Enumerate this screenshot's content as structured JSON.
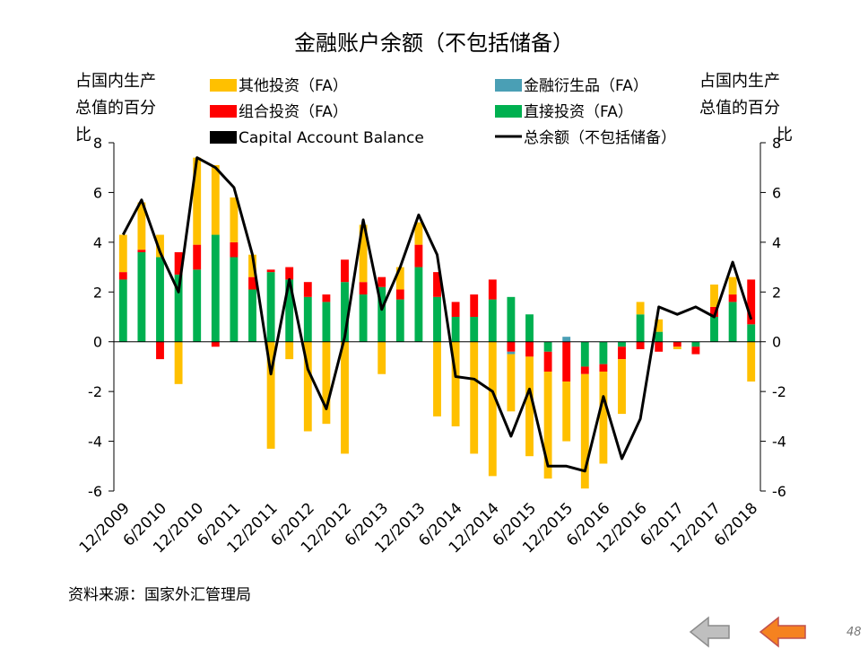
{
  "chart_data": {
    "type": "bar",
    "title": "金融账户余额（不包括储备）",
    "ylabel_left": [
      "占国内生产",
      "总值的百分",
      "比"
    ],
    "ylabel_right": [
      "占国内生产",
      "总值的百分",
      "比"
    ],
    "ylim": [
      -6,
      8
    ],
    "yticks": [
      -6,
      -4,
      -2,
      0,
      2,
      4,
      6,
      8
    ],
    "x_tick_labels": [
      "12/2009",
      "6/2010",
      "12/2010",
      "6/2011",
      "12/2011",
      "6/2012",
      "12/2012",
      "6/2013",
      "12/2013",
      "6/2014",
      "12/2014",
      "6/2015",
      "12/2015",
      "6/2016",
      "12/2016",
      "6/2017",
      "12/2017",
      "6/2018"
    ],
    "categories": [
      "12/2009",
      "3/2010",
      "6/2010",
      "9/2010",
      "12/2010",
      "3/2011",
      "6/2011",
      "9/2011",
      "12/2011",
      "3/2012",
      "6/2012",
      "9/2012",
      "12/2012",
      "3/2013",
      "6/2013",
      "9/2013",
      "12/2013",
      "3/2014",
      "6/2014",
      "9/2014",
      "12/2014",
      "3/2015",
      "6/2015",
      "9/2015",
      "12/2015",
      "3/2016",
      "6/2016",
      "9/2016",
      "12/2016",
      "3/2017",
      "6/2017",
      "9/2017",
      "12/2017",
      "3/2018",
      "6/2018"
    ],
    "stack_order": [
      "直接投资（FA）",
      "组合投资（FA）",
      "金融衍生品（FA）",
      "其他投资（FA）"
    ],
    "series": [
      {
        "name": "其他投资（FA）",
        "color": "#ffc000",
        "kind": "bar",
        "values": [
          1.5,
          1.9,
          0.9,
          -1.7,
          3.5,
          2.8,
          1.8,
          0.9,
          -4.3,
          -0.7,
          -3.6,
          -3.3,
          -4.5,
          2.3,
          -1.3,
          0.9,
          0.9,
          -3.0,
          -3.4,
          -4.5,
          -5.4,
          -2.3,
          -4.0,
          -4.3,
          -2.4,
          -4.6,
          -3.7,
          -2.2,
          0.5,
          0.5,
          -0.1,
          0.0,
          0.9,
          0.7,
          -1.6
        ]
      },
      {
        "name": "金融衍生品（FA）",
        "color": "#4a9fb5",
        "kind": "bar",
        "values": [
          0,
          0,
          0,
          0,
          0,
          0,
          0,
          0,
          0,
          0,
          0,
          0,
          0,
          0,
          0,
          0,
          0,
          0,
          0,
          0,
          0,
          -0.1,
          0,
          0,
          0.2,
          0,
          0,
          0,
          0,
          0,
          0,
          0,
          0,
          0,
          0
        ]
      },
      {
        "name": "组合投资（FA）",
        "color": "#ff0000",
        "kind": "bar",
        "values": [
          0.3,
          0.1,
          -0.7,
          0.9,
          1.0,
          -0.2,
          0.6,
          0.5,
          0.1,
          0.5,
          0.6,
          0.3,
          0.9,
          0.5,
          0.4,
          0.4,
          0.9,
          1.0,
          0.6,
          0.9,
          0.8,
          -0.4,
          -0.6,
          -0.8,
          -1.6,
          -0.3,
          -0.3,
          -0.5,
          -0.3,
          -0.4,
          -0.2,
          -0.3,
          0.4,
          0.3,
          1.8
        ]
      },
      {
        "name": "直接投资（FA）",
        "color": "#00b050",
        "kind": "bar",
        "values": [
          2.5,
          3.6,
          3.4,
          2.7,
          2.9,
          4.3,
          3.4,
          2.1,
          2.8,
          2.5,
          1.8,
          1.6,
          2.4,
          1.9,
          2.2,
          1.7,
          3.0,
          1.8,
          1.0,
          1.0,
          1.7,
          1.8,
          1.1,
          -0.4,
          0.0,
          -1.0,
          -0.9,
          -0.2,
          1.1,
          0.4,
          0.0,
          -0.2,
          1.0,
          1.6,
          0.7
        ]
      },
      {
        "name": "Capital Account Balance",
        "color": "#000000",
        "kind": "bar",
        "values": [
          0,
          0,
          0,
          0,
          0,
          0,
          0,
          0,
          0,
          0,
          0,
          0,
          0,
          0,
          0,
          0,
          0,
          0,
          0,
          0,
          0,
          0,
          0,
          0,
          0,
          0,
          0,
          0,
          0,
          0,
          0,
          0,
          0,
          0,
          0
        ]
      },
      {
        "name": "总余额（不包括储备）",
        "color": "#000000",
        "kind": "line",
        "values": [
          4.3,
          5.7,
          3.6,
          2.0,
          7.4,
          7.0,
          6.2,
          3.5,
          -1.3,
          2.5,
          -1.1,
          -2.7,
          0.2,
          4.9,
          1.3,
          3.0,
          5.1,
          3.5,
          -1.4,
          -1.5,
          -2.0,
          -3.8,
          -1.9,
          -5.0,
          -5.0,
          -5.2,
          -2.2,
          -4.7,
          -3.1,
          1.4,
          1.1,
          1.4,
          1.0,
          3.2,
          0.9
        ]
      }
    ]
  },
  "footer": {
    "source": "资料来源：国家外汇管理局",
    "page_number": "48",
    "prev_icon": "left-arrow-icon",
    "next_icon": "left-arrow-icon"
  }
}
